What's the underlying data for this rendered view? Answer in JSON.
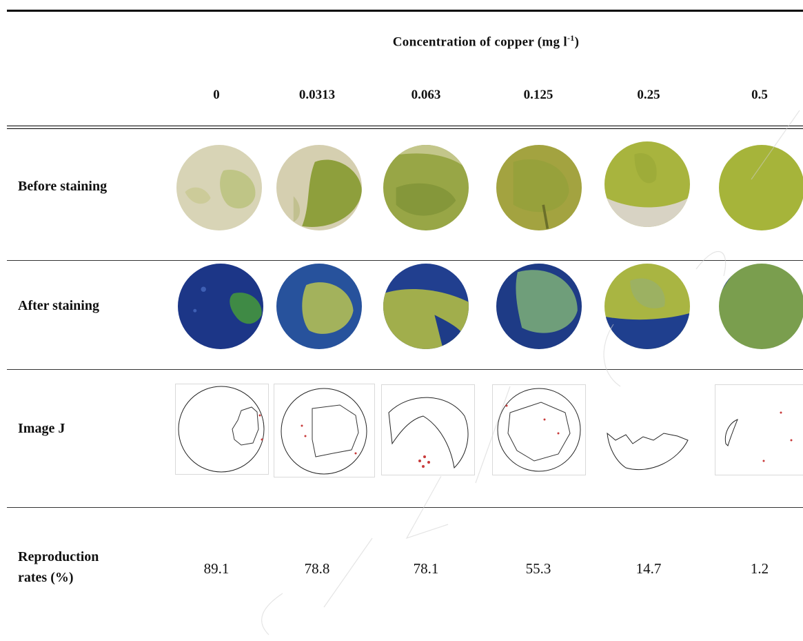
{
  "header": {
    "title_main": "Concentration of copper (mg l",
    "title_sup": "-1",
    "title_end": ")"
  },
  "columns": [
    "0",
    "0.0313",
    "0.063",
    "0.125",
    "0.25",
    "0.5"
  ],
  "rows": {
    "before": "Before staining",
    "after": "After staining",
    "imagej": "Image J",
    "rates_line1": "Reproduction",
    "rates_line2": "rates (%)"
  },
  "reproduction_rates": [
    "89.1",
    "78.8",
    "78.1",
    "55.3",
    "14.7",
    "1.2"
  ],
  "colors": {
    "algae_green": "#8fa62a",
    "pale_filter": "#d6d2b4",
    "stain_blue": "#1e3f8e",
    "outline": "#222222",
    "dots": "#c83a3a"
  }
}
